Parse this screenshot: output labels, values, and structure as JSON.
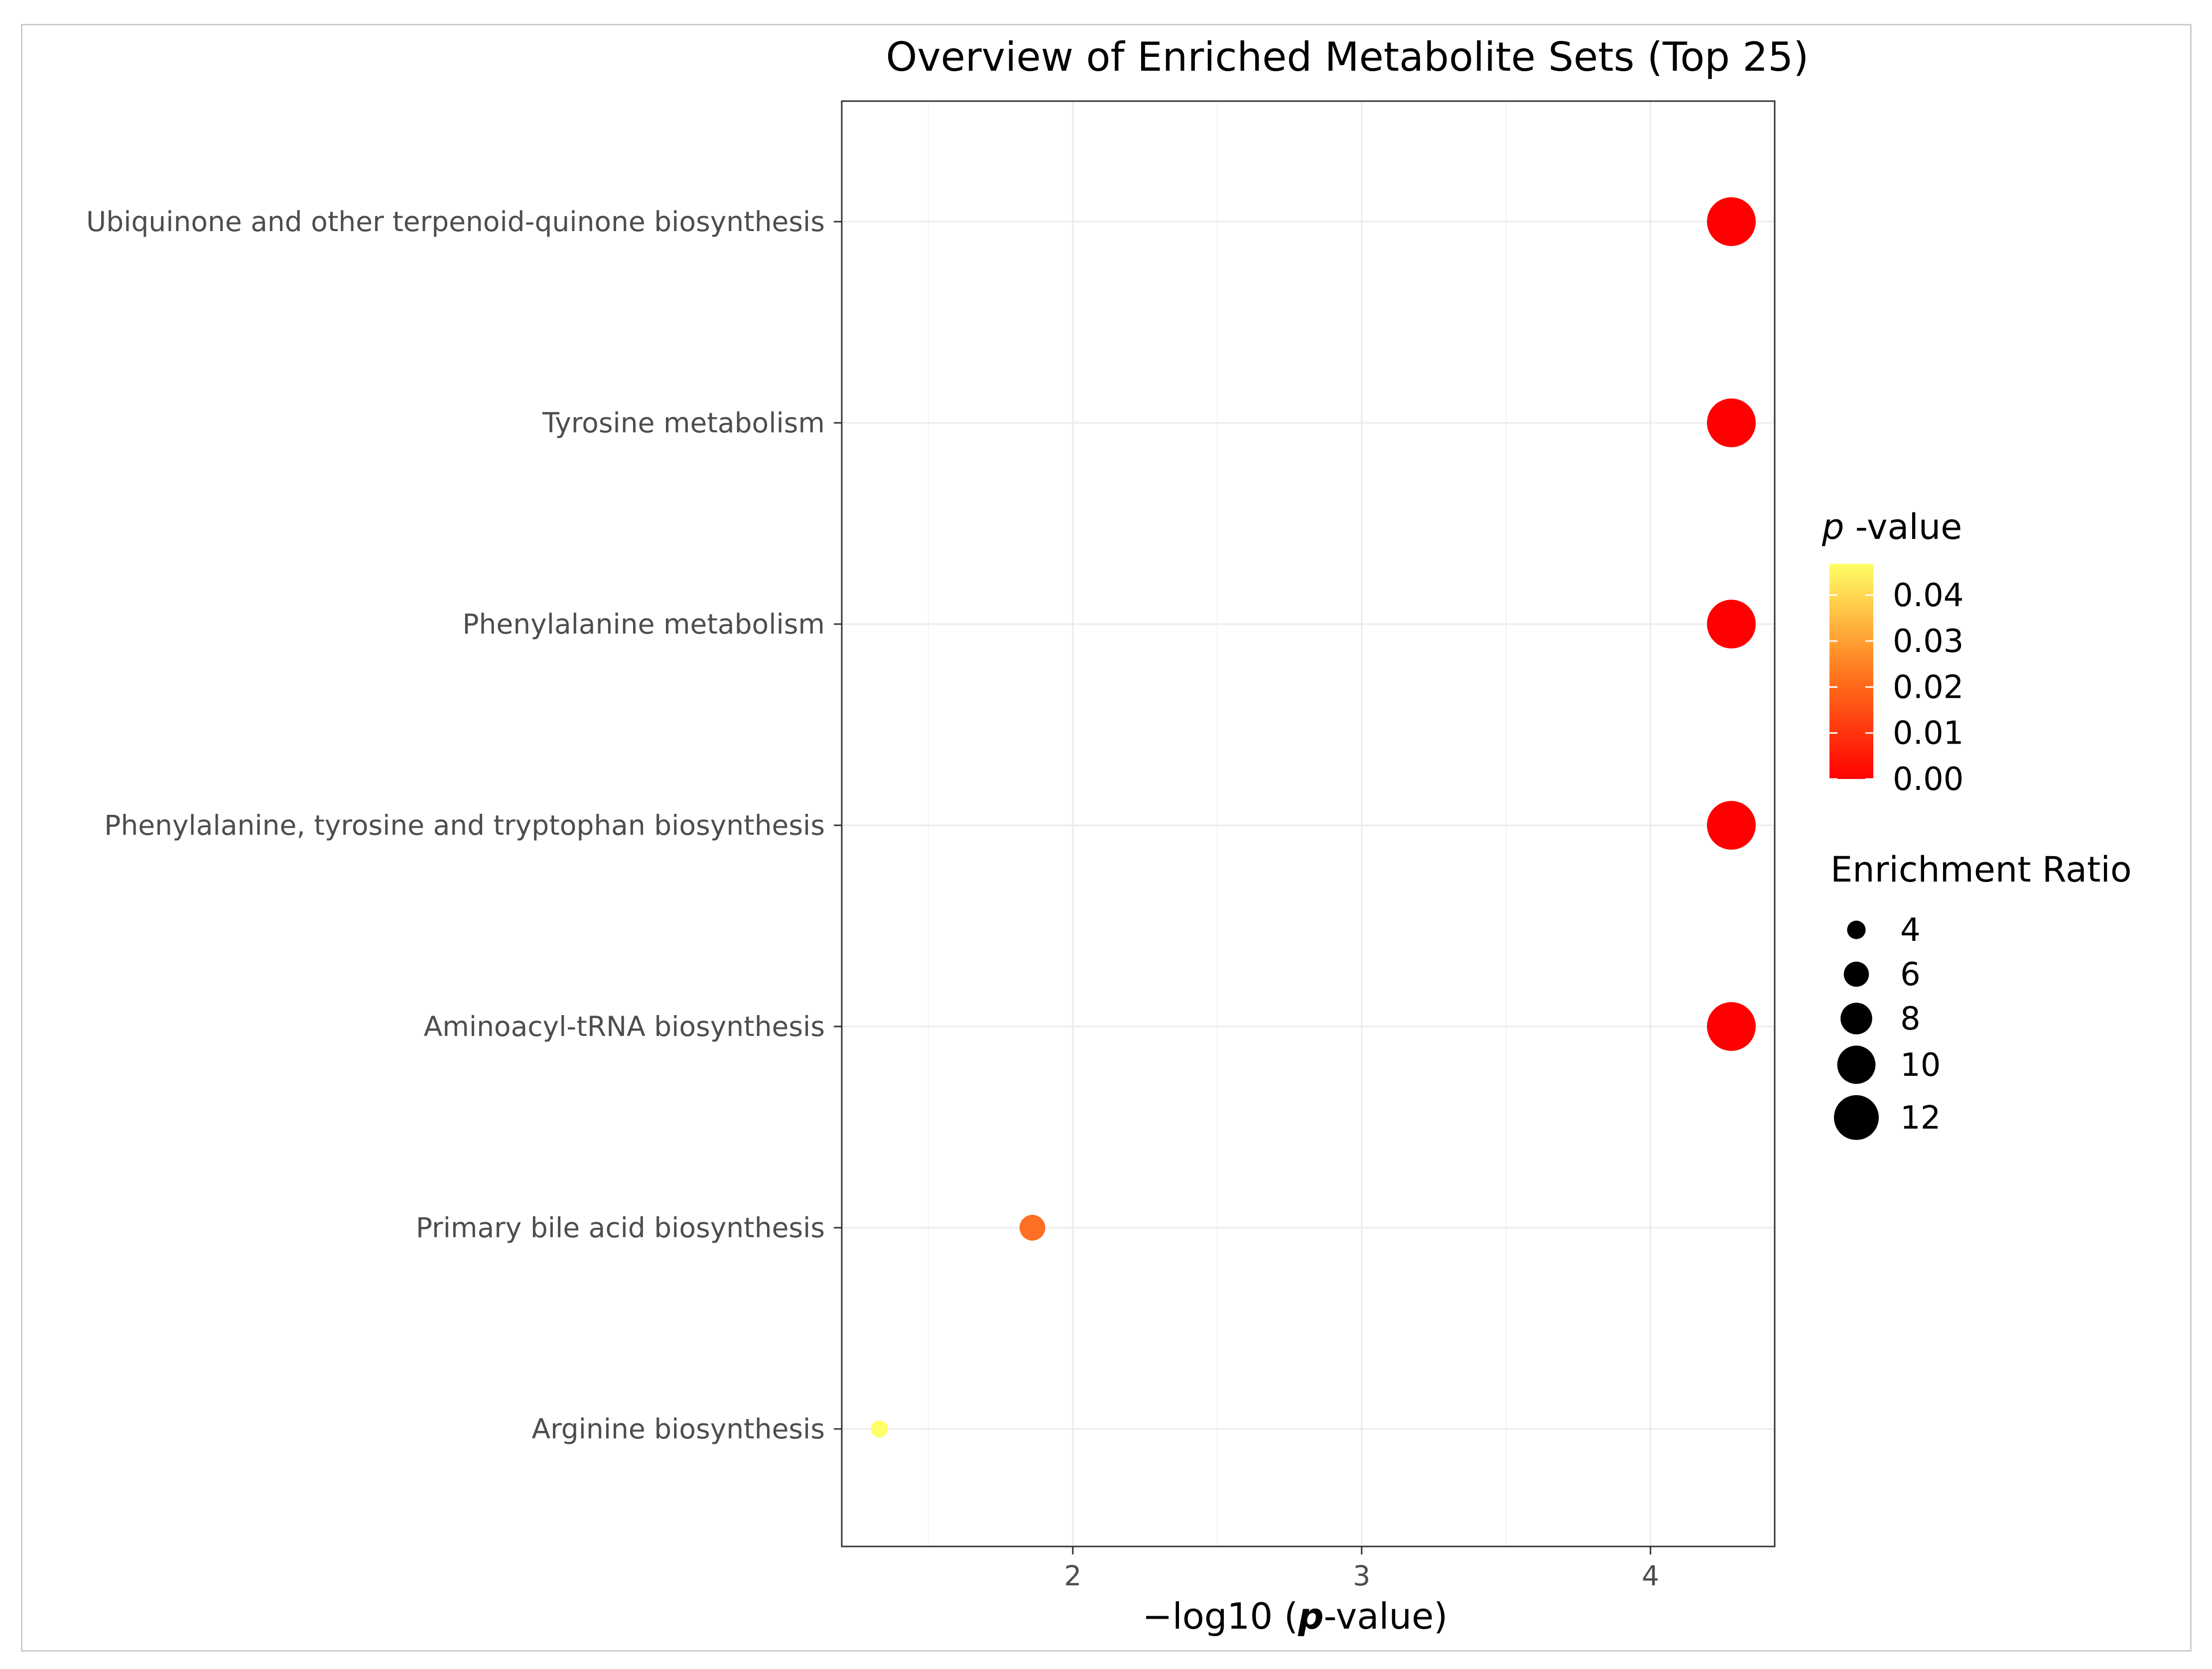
{
  "chart_data": {
    "type": "scatter",
    "title": "Overview of Enriched Metabolite Sets (Top 25)",
    "xlabel": "−log10 (p-value)",
    "xlabel_parts": {
      "prefix": "−log10 (",
      "p": "p",
      "suffix": "-value)"
    },
    "ylabel": "",
    "xlim": [
      1.2,
      4.43
    ],
    "xticks": [
      2,
      3,
      4
    ],
    "grid": true,
    "categories": [
      "Ubiquinone and other terpenoid-quinone biosynthesis",
      "Tyrosine metabolism",
      "Phenylalanine metabolism",
      "Phenylalanine, tyrosine and tryptophan biosynthesis",
      "Aminoacyl-tRNA biosynthesis",
      "Primary bile acid biosynthesis",
      "Arginine biosynthesis"
    ],
    "points": [
      {
        "name": "Ubiquinone and other terpenoid-quinone biosynthesis",
        "x": 4.28,
        "p_value": 5e-05,
        "enrichment_ratio": 13.2,
        "color": "#ff0000"
      },
      {
        "name": "Tyrosine metabolism",
        "x": 4.28,
        "p_value": 5e-05,
        "enrichment_ratio": 13.2,
        "color": "#ff0000"
      },
      {
        "name": "Phenylalanine metabolism",
        "x": 4.28,
        "p_value": 5e-05,
        "enrichment_ratio": 13.2,
        "color": "#ff0000"
      },
      {
        "name": "Phenylalanine, tyrosine and tryptophan biosynthesis",
        "x": 4.28,
        "p_value": 5e-05,
        "enrichment_ratio": 13.2,
        "color": "#ff0000"
      },
      {
        "name": "Aminoacyl-tRNA biosynthesis",
        "x": 4.28,
        "p_value": 5e-05,
        "enrichment_ratio": 13.2,
        "color": "#ff0000"
      },
      {
        "name": "Primary bile acid biosynthesis",
        "x": 1.86,
        "p_value": 0.0138,
        "enrichment_ratio": 6.2,
        "color": "#fb7022"
      },
      {
        "name": "Arginine biosynthesis",
        "x": 1.33,
        "p_value": 0.0468,
        "enrichment_ratio": 3.5,
        "color": "#ffff66"
      }
    ],
    "legend_color": {
      "title_p": "p",
      "title_rest": " -value",
      "placement": "right",
      "range": [
        0,
        0.0468
      ],
      "ticks": [
        {
          "label": "0.04",
          "value": 0.04
        },
        {
          "label": "0.03",
          "value": 0.03
        },
        {
          "label": "0.02",
          "value": 0.02
        },
        {
          "label": "0.01",
          "value": 0.01
        },
        {
          "label": "0.00",
          "value": 0.0
        }
      ],
      "colors": [
        "#ff0000",
        "#ff7a1f",
        "#ffff66"
      ]
    },
    "legend_size": {
      "title": "Enrichment Ratio",
      "placement": "right",
      "entries": [
        {
          "label": "4",
          "value": 4
        },
        {
          "label": "6",
          "value": 6
        },
        {
          "label": "8",
          "value": 8
        },
        {
          "label": "10",
          "value": 10
        },
        {
          "label": "12",
          "value": 12
        }
      ],
      "color": "#000000"
    }
  }
}
